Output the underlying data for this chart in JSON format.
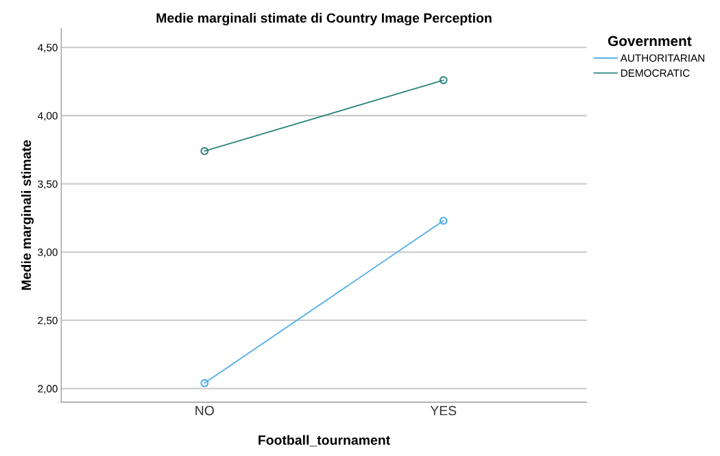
{
  "chart_data": {
    "type": "line",
    "title": "Medie marginali stimate di Country Image Perception",
    "xlabel": "Football_tournament",
    "ylabel": "Medie marginali stimate",
    "legend_title": "Government",
    "categories": [
      "NO",
      "YES"
    ],
    "series": [
      {
        "name": "AUTHORITARIAN",
        "color": "#4eaee8",
        "values": [
          2.04,
          3.23
        ]
      },
      {
        "name": "DEMOCRATIC",
        "color": "#2e8480",
        "values": [
          3.74,
          4.26
        ]
      }
    ],
    "ylim": [
      1.9,
      4.64
    ],
    "yticks": [
      {
        "value": 2.0,
        "label": "2,00"
      },
      {
        "value": 2.5,
        "label": "2,50"
      },
      {
        "value": 3.0,
        "label": "3,00"
      },
      {
        "value": 3.5,
        "label": "3,50"
      },
      {
        "value": 4.0,
        "label": "4,00"
      },
      {
        "value": 4.5,
        "label": "4,50"
      }
    ],
    "grid": "y",
    "legend": "top right",
    "marker": "circle",
    "line_style": "solid"
  }
}
